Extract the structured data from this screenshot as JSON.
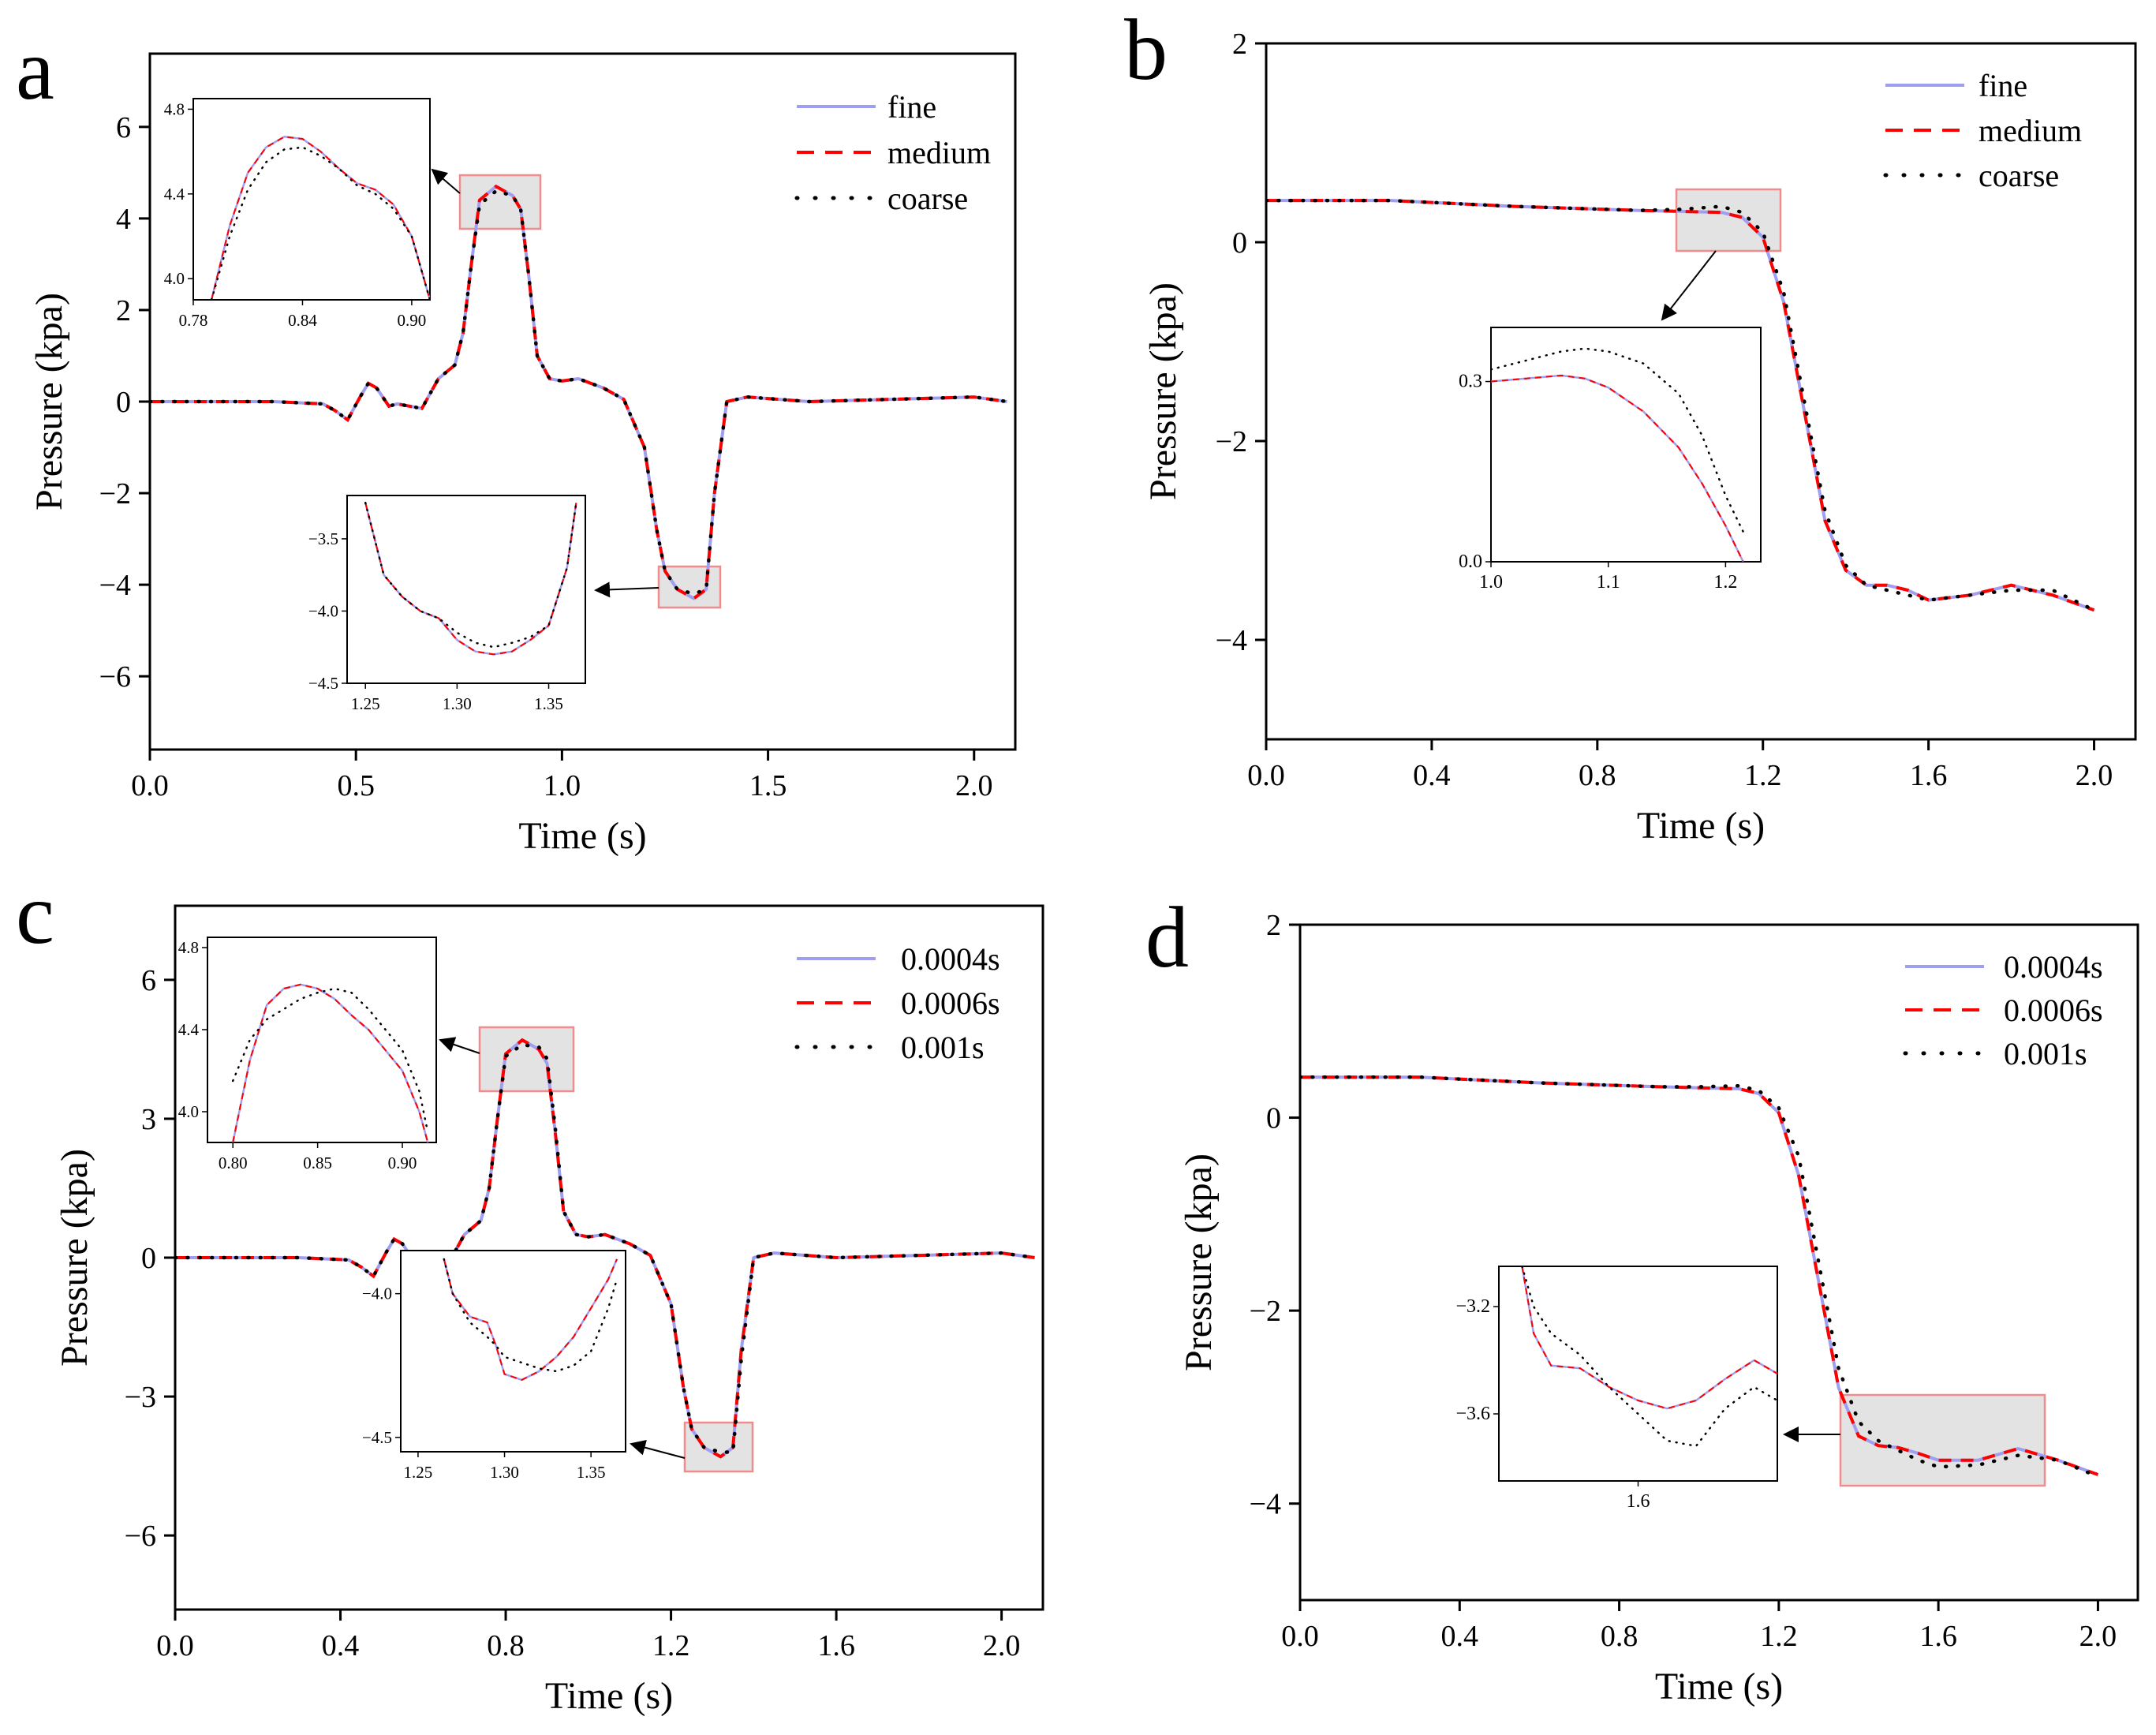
{
  "figure": {
    "panels": [
      "a",
      "b",
      "c",
      "d"
    ]
  },
  "chart_data": [
    {
      "id": "a",
      "type": "line",
      "panel_letter": "a",
      "xlabel": "Time (s)",
      "ylabel": "Pressure (kpa)",
      "xlim": [
        0,
        2.1
      ],
      "ylim": [
        -7.6,
        7.6
      ],
      "xticks": [
        0,
        0.5,
        1.0,
        1.5,
        2.0
      ],
      "xtick_labels": [
        "0.0",
        "0.5",
        "1.0",
        "1.5",
        "2.0"
      ],
      "yticks": [
        -6,
        -4,
        -2,
        0,
        2,
        4,
        6
      ],
      "ytick_labels": [
        "−6",
        "−4",
        "−2",
        "0",
        "2",
        "4",
        "6"
      ],
      "legend_position": "top-right",
      "series": [
        {
          "name": "fine",
          "style": "solid",
          "color": "#9f9ff2"
        },
        {
          "name": "medium",
          "style": "dashed",
          "color": "#ff0000"
        },
        {
          "name": "coarse",
          "style": "dotted",
          "color": "#000000"
        }
      ],
      "x": [
        0,
        0.3,
        0.42,
        0.45,
        0.48,
        0.51,
        0.53,
        0.55,
        0.58,
        0.6,
        0.63,
        0.66,
        0.7,
        0.74,
        0.76,
        0.78,
        0.8,
        0.84,
        0.88,
        0.9,
        0.92,
        0.94,
        0.97,
        1.0,
        1.04,
        1.1,
        1.15,
        1.2,
        1.23,
        1.25,
        1.28,
        1.3,
        1.32,
        1.35,
        1.37,
        1.4,
        1.45,
        1.6,
        1.8,
        2.0,
        2.08
      ],
      "y": [
        0,
        0,
        -0.05,
        -0.2,
        -0.4,
        0.1,
        0.4,
        0.3,
        -0.1,
        -0.05,
        -0.1,
        -0.15,
        0.5,
        0.8,
        1.5,
        3.0,
        4.4,
        4.7,
        4.5,
        4.2,
        2.7,
        1.0,
        0.5,
        0.45,
        0.5,
        0.3,
        0.05,
        -1.0,
        -2.8,
        -3.7,
        -4.1,
        -4.2,
        -4.3,
        -4.1,
        -2.0,
        0.0,
        0.1,
        0.0,
        0.05,
        0.1,
        0.0
      ],
      "coarse_y": [
        0,
        0,
        -0.05,
        -0.2,
        -0.4,
        0.1,
        0.4,
        0.3,
        -0.1,
        -0.05,
        -0.1,
        -0.15,
        0.5,
        0.8,
        1.5,
        3.0,
        4.3,
        4.6,
        4.5,
        4.2,
        2.7,
        1.0,
        0.5,
        0.45,
        0.5,
        0.3,
        0.05,
        -1.0,
        -2.8,
        -3.7,
        -4.1,
        -4.15,
        -4.2,
        -4.1,
        -2.0,
        0.0,
        0.1,
        0.0,
        0.05,
        0.1,
        0.0
      ],
      "insets": [
        {
          "xlim": [
            0.78,
            0.91
          ],
          "ylim": [
            3.9,
            4.85
          ],
          "xticks": [
            0.78,
            0.84,
            0.9
          ],
          "xtick_labels": [
            "0.78",
            "0.84",
            "0.90"
          ],
          "yticks": [
            4.0,
            4.4,
            4.8
          ],
          "ytick_labels": [
            "4.0",
            "4.4",
            "4.8"
          ],
          "x": [
            0.79,
            0.8,
            0.81,
            0.82,
            0.83,
            0.84,
            0.85,
            0.86,
            0.87,
            0.88,
            0.89,
            0.9,
            0.905,
            0.91
          ],
          "y": [
            3.9,
            4.25,
            4.5,
            4.62,
            4.67,
            4.66,
            4.6,
            4.52,
            4.45,
            4.42,
            4.35,
            4.2,
            4.05,
            3.9
          ],
          "coarse_y": [
            3.9,
            4.2,
            4.42,
            4.55,
            4.61,
            4.62,
            4.58,
            4.52,
            4.44,
            4.4,
            4.33,
            4.2,
            4.05,
            3.9
          ]
        },
        {
          "xlim": [
            1.24,
            1.37
          ],
          "ylim": [
            -4.5,
            -3.2
          ],
          "xticks": [
            1.25,
            1.3,
            1.35
          ],
          "xtick_labels": [
            "1.25",
            "1.30",
            "1.35"
          ],
          "yticks": [
            -4.5,
            -4.0,
            -3.5
          ],
          "ytick_labels": [
            "−4.5",
            "−4.0",
            "−3.5"
          ],
          "x": [
            1.25,
            1.26,
            1.27,
            1.28,
            1.29,
            1.3,
            1.31,
            1.32,
            1.33,
            1.34,
            1.35,
            1.36,
            1.365
          ],
          "y": [
            -3.25,
            -3.75,
            -3.9,
            -4.0,
            -4.05,
            -4.2,
            -4.28,
            -4.3,
            -4.28,
            -4.2,
            -4.1,
            -3.7,
            -3.25
          ],
          "coarse_y": [
            -3.25,
            -3.75,
            -3.9,
            -4.0,
            -4.05,
            -4.15,
            -4.22,
            -4.25,
            -4.22,
            -4.18,
            -4.1,
            -3.7,
            -3.25
          ]
        }
      ]
    },
    {
      "id": "b",
      "type": "line",
      "panel_letter": "b",
      "xlabel": "Time (s)",
      "ylabel": "Pressure (kpa)",
      "xlim": [
        0,
        2.1
      ],
      "ylim": [
        -5,
        2
      ],
      "xticks": [
        0,
        0.4,
        0.8,
        1.2,
        1.6,
        2.0
      ],
      "xtick_labels": [
        "0.0",
        "0.4",
        "0.8",
        "1.2",
        "1.6",
        "2.0"
      ],
      "yticks": [
        -4,
        -2,
        0,
        2
      ],
      "ytick_labels": [
        "−4",
        "−2",
        "0",
        "2"
      ],
      "legend_position": "top-right",
      "series": [
        {
          "name": "fine",
          "style": "solid",
          "color": "#9f9ff2"
        },
        {
          "name": "medium",
          "style": "dashed",
          "color": "#ff0000"
        },
        {
          "name": "coarse",
          "style": "dotted",
          "color": "#000000"
        }
      ],
      "x": [
        0,
        0.3,
        0.6,
        0.9,
        1.0,
        1.1,
        1.15,
        1.2,
        1.25,
        1.3,
        1.35,
        1.4,
        1.45,
        1.5,
        1.55,
        1.6,
        1.7,
        1.8,
        1.9,
        2.0
      ],
      "y": [
        0.42,
        0.42,
        0.36,
        0.32,
        0.31,
        0.3,
        0.25,
        0.05,
        -0.6,
        -1.7,
        -2.8,
        -3.3,
        -3.45,
        -3.45,
        -3.5,
        -3.6,
        -3.55,
        -3.45,
        -3.55,
        -3.7
      ],
      "coarse_y": [
        0.42,
        0.42,
        0.36,
        0.32,
        0.33,
        0.36,
        0.3,
        0.1,
        -0.5,
        -1.6,
        -2.7,
        -3.25,
        -3.45,
        -3.5,
        -3.55,
        -3.6,
        -3.55,
        -3.5,
        -3.5,
        -3.7
      ],
      "insets": [
        {
          "xlim": [
            1.0,
            1.23
          ],
          "ylim": [
            0.0,
            0.39
          ],
          "xticks": [
            1.0,
            1.1,
            1.2
          ],
          "xtick_labels": [
            "1.0",
            "1.1",
            "1.2"
          ],
          "yticks": [
            0.0,
            0.3
          ],
          "ytick_labels": [
            "0.0",
            "0.3"
          ],
          "x": [
            1.0,
            1.03,
            1.06,
            1.08,
            1.1,
            1.13,
            1.16,
            1.18,
            1.2,
            1.215
          ],
          "y": [
            0.3,
            0.305,
            0.31,
            0.305,
            0.29,
            0.25,
            0.19,
            0.13,
            0.06,
            0.0
          ],
          "coarse_y": [
            0.32,
            0.335,
            0.35,
            0.355,
            0.35,
            0.33,
            0.28,
            0.21,
            0.11,
            0.05
          ]
        }
      ]
    },
    {
      "id": "c",
      "type": "line",
      "panel_letter": "c",
      "xlabel": "Time (s)",
      "ylabel": "Pressure (kpa)",
      "xlim": [
        0,
        2.1
      ],
      "ylim": [
        -7.6,
        7.6
      ],
      "xticks": [
        0,
        0.4,
        0.8,
        1.2,
        1.6,
        2.0
      ],
      "xtick_labels": [
        "0.0",
        "0.4",
        "0.8",
        "1.2",
        "1.6",
        "2.0"
      ],
      "yticks": [
        -6,
        -3,
        0,
        3,
        6
      ],
      "ytick_labels": [
        "−6",
        "−3",
        "0",
        "3",
        "6"
      ],
      "legend_position": "top-right",
      "series": [
        {
          "name": "0.0004s",
          "style": "solid",
          "color": "#9f9ff2"
        },
        {
          "name": "0.0006s",
          "style": "dashed",
          "color": "#ff0000"
        },
        {
          "name": "0.001s",
          "style": "dotted",
          "color": "#000000"
        }
      ],
      "x": [
        0,
        0.3,
        0.42,
        0.45,
        0.48,
        0.51,
        0.53,
        0.55,
        0.58,
        0.6,
        0.63,
        0.66,
        0.7,
        0.74,
        0.76,
        0.78,
        0.8,
        0.84,
        0.88,
        0.9,
        0.92,
        0.94,
        0.97,
        1.0,
        1.04,
        1.1,
        1.15,
        1.2,
        1.23,
        1.25,
        1.28,
        1.3,
        1.32,
        1.35,
        1.37,
        1.4,
        1.45,
        1.6,
        1.8,
        2.0,
        2.08
      ],
      "y": [
        0,
        0,
        -0.05,
        -0.2,
        -0.4,
        0.1,
        0.4,
        0.3,
        -0.1,
        -0.05,
        -0.1,
        -0.15,
        0.5,
        0.8,
        1.5,
        3.0,
        4.4,
        4.7,
        4.5,
        4.2,
        2.7,
        1.0,
        0.5,
        0.45,
        0.5,
        0.3,
        0.05,
        -1.0,
        -2.8,
        -3.7,
        -4.1,
        -4.2,
        -4.3,
        -4.1,
        -2.0,
        0.0,
        0.1,
        0.0,
        0.05,
        0.1,
        0.0
      ],
      "coarse_y": [
        0,
        0,
        -0.05,
        -0.2,
        -0.4,
        0.1,
        0.4,
        0.3,
        -0.1,
        -0.05,
        -0.1,
        -0.15,
        0.5,
        0.8,
        1.5,
        3.0,
        4.35,
        4.6,
        4.55,
        4.3,
        2.8,
        1.0,
        0.5,
        0.45,
        0.5,
        0.3,
        0.05,
        -1.0,
        -2.8,
        -3.7,
        -4.1,
        -4.15,
        -4.2,
        -4.2,
        -2.2,
        0.0,
        0.1,
        0.0,
        0.05,
        0.1,
        0.0
      ],
      "insets": [
        {
          "xlim": [
            0.785,
            0.92
          ],
          "ylim": [
            3.85,
            4.85
          ],
          "xticks": [
            0.8,
            0.85,
            0.9
          ],
          "xtick_labels": [
            "0.80",
            "0.85",
            "0.90"
          ],
          "yticks": [
            4.0,
            4.4,
            4.8
          ],
          "ytick_labels": [
            "4.0",
            "4.4",
            "4.8"
          ],
          "x": [
            0.8,
            0.81,
            0.82,
            0.83,
            0.84,
            0.85,
            0.86,
            0.87,
            0.88,
            0.89,
            0.9,
            0.91,
            0.915
          ],
          "y": [
            3.85,
            4.25,
            4.52,
            4.6,
            4.62,
            4.6,
            4.55,
            4.47,
            4.4,
            4.3,
            4.2,
            4.0,
            3.85
          ],
          "coarse_y": [
            4.15,
            4.35,
            4.45,
            4.5,
            4.55,
            4.58,
            4.6,
            4.58,
            4.5,
            4.4,
            4.3,
            4.1,
            3.9
          ]
        },
        {
          "xlim": [
            1.24,
            1.37
          ],
          "ylim": [
            -4.55,
            -3.85
          ],
          "xticks": [
            1.25,
            1.3,
            1.35
          ],
          "xtick_labels": [
            "1.25",
            "1.30",
            "1.35"
          ],
          "yticks": [
            -4.5,
            -4.0
          ],
          "ytick_labels": [
            "−4.5",
            "−4.0"
          ],
          "x": [
            1.265,
            1.27,
            1.28,
            1.29,
            1.295,
            1.3,
            1.31,
            1.32,
            1.33,
            1.34,
            1.35,
            1.36,
            1.365
          ],
          "y": [
            -3.88,
            -4.0,
            -4.08,
            -4.1,
            -4.18,
            -4.28,
            -4.3,
            -4.27,
            -4.22,
            -4.15,
            -4.05,
            -3.95,
            -3.88
          ],
          "coarse_y": [
            -3.88,
            -4.0,
            -4.1,
            -4.15,
            -4.18,
            -4.22,
            -4.24,
            -4.26,
            -4.27,
            -4.25,
            -4.2,
            -4.05,
            -3.95
          ]
        }
      ]
    },
    {
      "id": "d",
      "type": "line",
      "panel_letter": "d",
      "xlabel": "Time (s)",
      "ylabel": "Pressure (kpa)",
      "xlim": [
        0,
        2.1
      ],
      "ylim": [
        -5,
        2
      ],
      "xticks": [
        0,
        0.4,
        0.8,
        1.2,
        1.6,
        2.0
      ],
      "xtick_labels": [
        "0.0",
        "0.4",
        "0.8",
        "1.2",
        "1.6",
        "2.0"
      ],
      "yticks": [
        -4,
        -2,
        0,
        2
      ],
      "ytick_labels": [
        "−4",
        "−2",
        "0",
        "2"
      ],
      "legend_position": "top-right",
      "series": [
        {
          "name": "0.0004s",
          "style": "solid",
          "color": "#9f9ff2"
        },
        {
          "name": "0.0006s",
          "style": "dashed",
          "color": "#ff0000"
        },
        {
          "name": "0.001s",
          "style": "dotted",
          "color": "#000000"
        }
      ],
      "x": [
        0,
        0.3,
        0.6,
        0.9,
        1.0,
        1.1,
        1.15,
        1.2,
        1.25,
        1.3,
        1.35,
        1.4,
        1.45,
        1.5,
        1.55,
        1.6,
        1.7,
        1.8,
        1.9,
        2.0
      ],
      "y": [
        0.42,
        0.42,
        0.36,
        0.32,
        0.31,
        0.3,
        0.25,
        0.05,
        -0.6,
        -1.7,
        -2.8,
        -3.3,
        -3.4,
        -3.42,
        -3.48,
        -3.55,
        -3.55,
        -3.43,
        -3.55,
        -3.7
      ],
      "coarse_y": [
        0.42,
        0.42,
        0.36,
        0.32,
        0.32,
        0.33,
        0.28,
        0.1,
        -0.4,
        -1.5,
        -2.6,
        -3.15,
        -3.35,
        -3.45,
        -3.55,
        -3.62,
        -3.6,
        -3.5,
        -3.55,
        -3.72
      ],
      "insets": [
        {
          "xlim": [
            1.36,
            1.84
          ],
          "ylim": [
            -3.85,
            -3.05
          ],
          "xticks": [
            1.6
          ],
          "xtick_labels": [
            "1.6"
          ],
          "yticks": [
            -3.6,
            -3.2
          ],
          "ytick_labels": [
            "−3.6",
            "−3.2"
          ],
          "x": [
            1.4,
            1.42,
            1.45,
            1.5,
            1.55,
            1.6,
            1.65,
            1.7,
            1.75,
            1.8,
            1.84
          ],
          "y": [
            -3.05,
            -3.3,
            -3.42,
            -3.43,
            -3.5,
            -3.55,
            -3.58,
            -3.55,
            -3.47,
            -3.4,
            -3.45
          ],
          "coarse_y": [
            -3.05,
            -3.2,
            -3.3,
            -3.38,
            -3.5,
            -3.6,
            -3.7,
            -3.72,
            -3.58,
            -3.5,
            -3.55
          ]
        }
      ]
    }
  ]
}
